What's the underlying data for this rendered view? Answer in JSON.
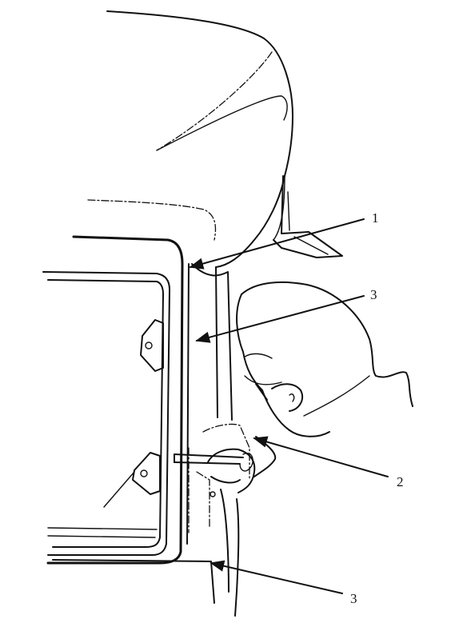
{
  "callouts": [
    {
      "id": "1",
      "label": "1"
    },
    {
      "id": "3a",
      "label": "3"
    },
    {
      "id": "2",
      "label": "2"
    },
    {
      "id": "3b",
      "label": "3"
    }
  ],
  "colors": {
    "ink": "#111111",
    "background": "#ffffff"
  }
}
